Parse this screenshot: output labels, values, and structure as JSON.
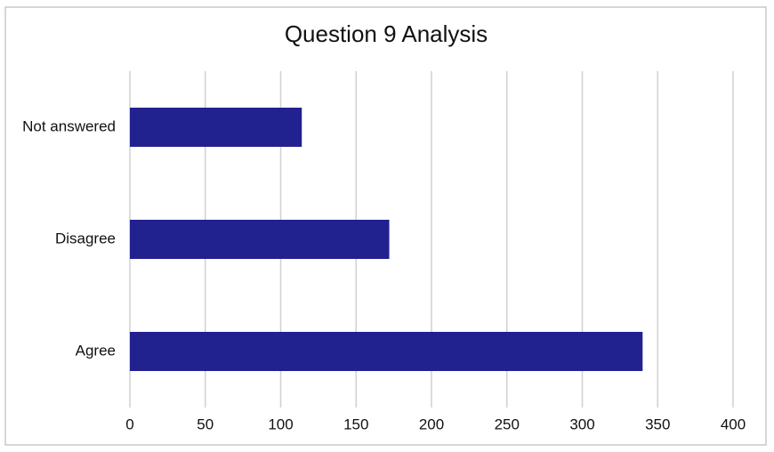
{
  "chart_data": {
    "type": "bar",
    "orientation": "horizontal",
    "title": "Question 9 Analysis",
    "categories": [
      "Not answered",
      "Disagree",
      "Agree"
    ],
    "values": [
      114,
      172,
      340
    ],
    "color": "#21218f",
    "xlim": [
      0,
      400
    ],
    "xticks": [
      0,
      50,
      100,
      150,
      200,
      250,
      300,
      350,
      400
    ],
    "grid": true
  }
}
